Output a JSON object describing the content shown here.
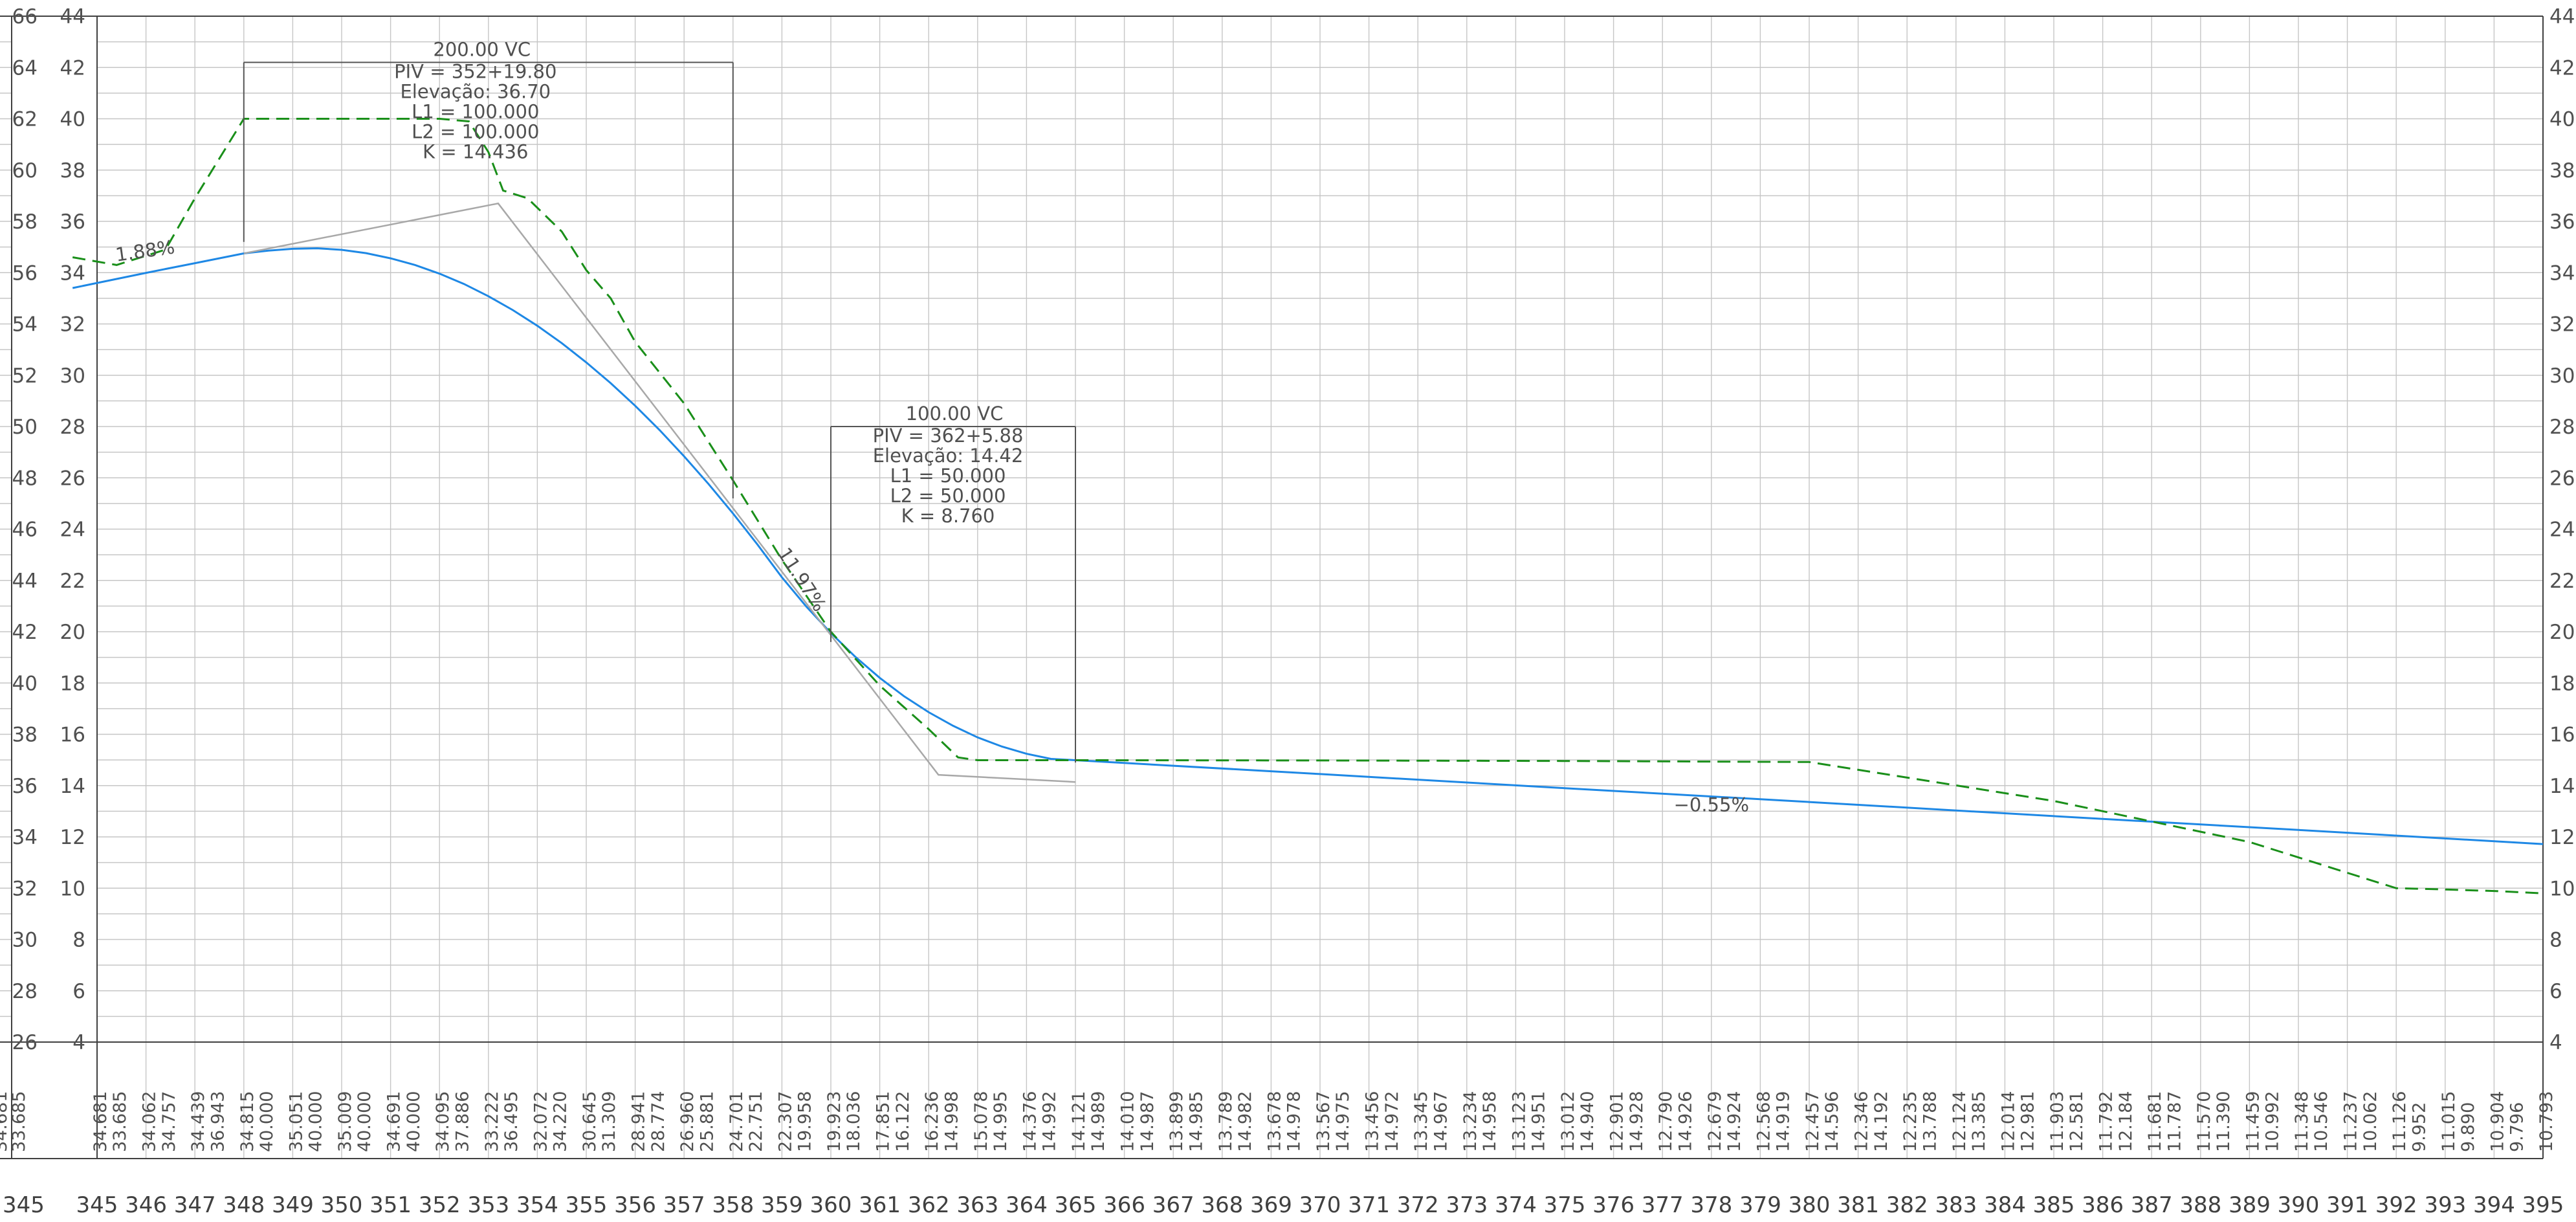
{
  "chart_data": {
    "type": "line",
    "title": "",
    "xlabel": "",
    "ylabel": "",
    "xlim": [
      345,
      395
    ],
    "ylim_left_outer": [
      26,
      66
    ],
    "ylim": [
      4,
      44
    ],
    "y_ticks_outer": [
      "66",
      "64",
      "62",
      "60",
      "58",
      "56",
      "54",
      "52",
      "50",
      "48",
      "46",
      "44",
      "42",
      "40",
      "38",
      "36",
      "34",
      "32",
      "30",
      "28",
      "26"
    ],
    "y_ticks_inner": [
      "44",
      "42",
      "40",
      "38",
      "36",
      "34",
      "32",
      "30",
      "28",
      "26",
      "24",
      "22",
      "20",
      "18",
      "16",
      "14",
      "12",
      "10",
      "8",
      "6",
      "4"
    ],
    "y_ticks_right": [
      "44",
      "42",
      "40",
      "38",
      "36",
      "34",
      "32",
      "30",
      "28",
      "26",
      "24",
      "22",
      "20",
      "18",
      "16",
      "14",
      "12",
      "10",
      "8",
      "6",
      "4"
    ],
    "x_ticks": [
      "345",
      "346",
      "347",
      "348",
      "349",
      "350",
      "351",
      "352",
      "353",
      "354",
      "355",
      "356",
      "357",
      "358",
      "359",
      "360",
      "361",
      "362",
      "363",
      "364",
      "365",
      "366",
      "367",
      "368",
      "369",
      "370",
      "371",
      "372",
      "373",
      "374",
      "375",
      "376",
      "377",
      "378",
      "379",
      "380",
      "381",
      "382",
      "383",
      "384",
      "385",
      "386",
      "387",
      "388",
      "389",
      "390",
      "391",
      "392",
      "393",
      "394",
      "395"
    ],
    "grid": true,
    "colors": {
      "design": "#1e88e5",
      "ground": "#1a8f1a",
      "tangent": "#a8a8a8",
      "grid": "#c6c6c6",
      "frame": "#404040",
      "text": "#505050"
    },
    "series": [
      {
        "key": "design",
        "style": "solid",
        "x": [
          344.5,
          346,
          347,
          348,
          348.5,
          349.0,
          349.5,
          350,
          350.5,
          351,
          351.5,
          352,
          352.5,
          353,
          353.5,
          354,
          354.5,
          355,
          355.5,
          356,
          356.5,
          357,
          357.5,
          358,
          358.5,
          359,
          359.5,
          360,
          360.5,
          361,
          361.5,
          362,
          362.5,
          363,
          363.5,
          364,
          364.5,
          365,
          370,
          375,
          380,
          385,
          390,
          395
        ],
        "y": [
          33.4,
          33.99,
          34.37,
          34.75,
          34.86,
          34.93,
          34.95,
          34.89,
          34.76,
          34.56,
          34.3,
          33.96,
          33.56,
          33.08,
          32.54,
          31.93,
          31.25,
          30.5,
          29.69,
          28.81,
          27.86,
          26.84,
          25.76,
          24.61,
          23.4,
          22.12,
          20.98,
          19.95,
          19.02,
          18.2,
          17.48,
          16.86,
          16.33,
          15.88,
          15.52,
          15.24,
          15.04,
          14.99,
          14.45,
          13.9,
          13.36,
          12.81,
          12.27,
          11.72
        ]
      },
      {
        "key": "ground",
        "style": "dashed",
        "x": [
          344.5,
          345.4,
          346.4,
          347,
          348,
          349,
          350,
          351,
          352,
          352.6,
          353,
          353.3,
          353.8,
          354.5,
          355,
          355.5,
          356,
          357,
          358,
          359,
          360,
          361,
          362,
          362.6,
          363,
          364,
          365,
          370,
          375,
          380,
          385,
          389,
          390,
          391,
          392,
          393,
          394,
          395
        ],
        "y": [
          34.6,
          34.3,
          34.9,
          36.9,
          40.0,
          40.0,
          40.0,
          40.0,
          40.0,
          39.9,
          38.7,
          37.2,
          36.9,
          35.6,
          34.1,
          33.0,
          31.3,
          28.9,
          25.9,
          22.8,
          20.0,
          17.9,
          16.2,
          15.1,
          14.99,
          14.99,
          14.99,
          14.98,
          14.96,
          14.92,
          13.4,
          11.8,
          11.2,
          10.6,
          10.0,
          9.95,
          9.89,
          9.8
        ]
      },
      {
        "key": "tangent",
        "style": "solid",
        "x": [
          348,
          353.2,
          362.2,
          365
        ],
        "y": [
          34.75,
          36.7,
          14.42,
          14.14
        ]
      }
    ],
    "annotations": [
      {
        "id": "vc1",
        "header": "200.00  VC",
        "lines": [
          "PIV  =  352+19.80",
          "Elevação: 36.70",
          "L1  =  100.000",
          "L2  =  100.000",
          "K   = 14.436"
        ],
        "x_range": [
          348,
          358
        ],
        "top_y": 42.2
      },
      {
        "id": "vc2",
        "header": "100.00  VC",
        "lines": [
          "PIV  =  362+5.88",
          "Elevação: 14.42",
          "L1  =  50.000",
          "L2  =  50.000",
          "K  =  8.760"
        ],
        "x_range": [
          360,
          365
        ],
        "top_y": 28.0
      }
    ],
    "grades": [
      {
        "text": "1.88%",
        "x": 346.0,
        "y": 34.6,
        "angle": -8
      },
      {
        "text": "11.97%",
        "x": 359.3,
        "y": 21.9,
        "angle": 57
      },
      {
        "text": "−0.55%",
        "x": 378.0,
        "y": 13.0,
        "angle": 0
      }
    ],
    "table": {
      "row1_x": [
        345,
        346,
        347,
        348,
        349,
        350,
        351,
        352,
        353,
        354,
        355,
        356,
        357,
        358,
        359,
        360,
        361,
        362,
        363,
        364,
        365,
        366,
        367,
        368,
        369,
        370,
        371,
        372,
        373,
        374,
        375,
        376,
        377,
        378,
        379,
        380,
        381,
        382,
        383,
        384,
        385,
        386,
        387,
        388,
        389,
        390,
        391,
        392,
        393,
        394,
        395
      ],
      "row1": [
        "34.681",
        "34.062",
        "34.439",
        "34.815",
        "35.051",
        "35.009",
        "34.691",
        "34.095",
        "33.222",
        "32.072",
        "30.645",
        "28.941",
        "26.960",
        "24.701",
        "22.307",
        "19.923",
        "17.851",
        "16.236",
        "15.078",
        "14.376",
        "14.121",
        "14.010",
        "13.899",
        "13.789",
        "13.678",
        "13.567",
        "13.456",
        "13.345",
        "13.234",
        "13.123",
        "13.012",
        "12.901",
        "12.790",
        "12.679",
        "12.568",
        "12.457",
        "12.346",
        "12.235",
        "12.124",
        "12.014",
        "11.903",
        "11.792",
        "11.681",
        "11.570",
        "11.459",
        "11.348",
        "11.237",
        "11.126",
        "11.015",
        "10.904",
        "10.793"
      ],
      "row2_x": [
        345.4,
        346.4,
        347.4,
        348.4,
        349.4,
        350.4,
        351.4,
        352.4,
        353.4,
        354.4,
        355.4,
        356.4,
        357.4,
        358.4,
        359.4,
        360.4,
        361.4,
        362.4,
        363.4,
        364.4,
        365.4,
        366.4,
        367.4,
        368.4,
        369.4,
        370.4,
        371.4,
        372.4,
        373.4,
        374.4,
        375.4,
        376.4,
        377.4,
        378.4,
        379.4,
        380.4,
        381.4,
        382.4,
        383.4,
        384.4,
        385.4,
        386.4,
        387.4,
        388.4,
        389.4,
        390.4,
        391.4,
        392.4,
        393.4,
        394.4
      ],
      "row2": [
        "33.685",
        "34.757",
        "36.943",
        "40.000",
        "40.000",
        "40.000",
        "40.000",
        "37.886",
        "36.495",
        "34.220",
        "31.309",
        "28.774",
        "25.881",
        "22.751",
        "19.958",
        "18.036",
        "16.122",
        "14.998",
        "14.995",
        "14.992",
        "14.989",
        "14.987",
        "14.985",
        "14.982",
        "14.978",
        "14.975",
        "14.972",
        "14.967",
        "14.958",
        "14.951",
        "14.940",
        "14.928",
        "14.926",
        "14.924",
        "14.919",
        "14.596",
        "14.192",
        "13.788",
        "13.385",
        "12.981",
        "12.581",
        "12.184",
        "11.787",
        "11.390",
        "10.992",
        "10.546",
        "10.062",
        "9.952",
        "9.890",
        "9.796"
      ],
      "edge_left": [
        "34.681",
        "33.685"
      ]
    }
  }
}
